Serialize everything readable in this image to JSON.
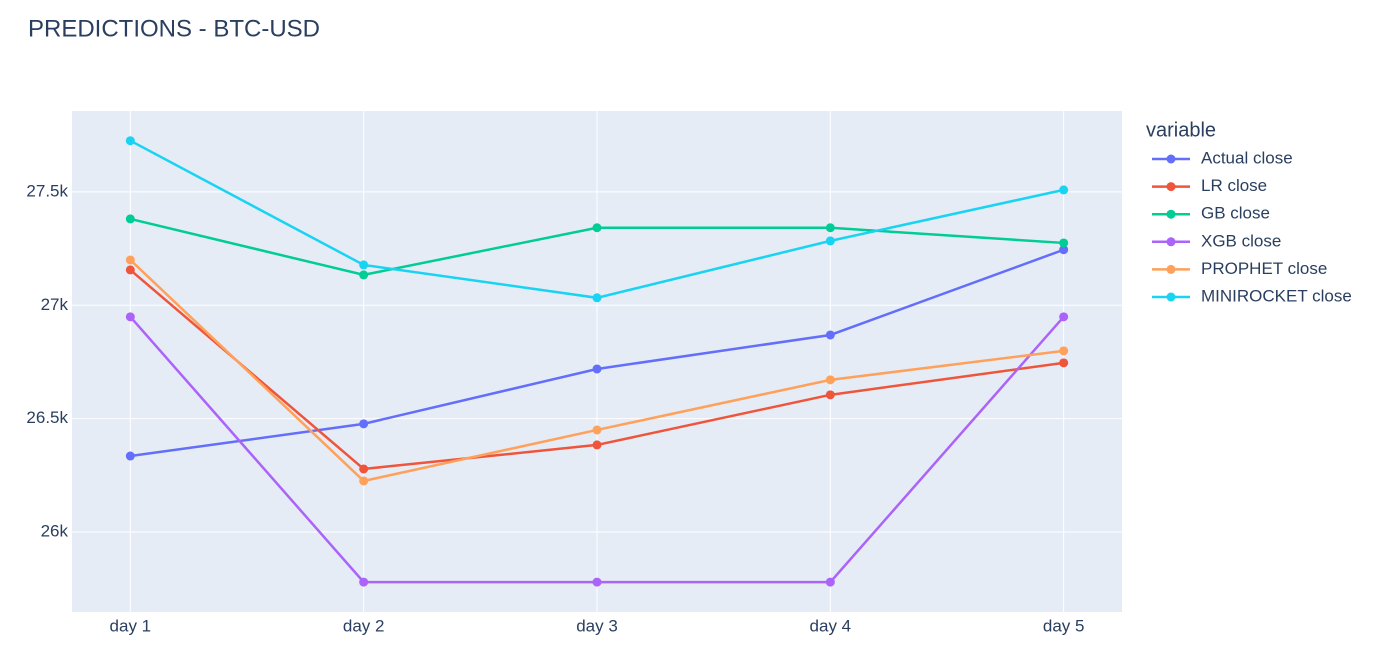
{
  "chart_data": {
    "type": "line",
    "title": "PREDICTIONS - BTC-USD",
    "legend_title": "variable",
    "legend_position": "right",
    "grid": true,
    "categories": [
      "day 1",
      "day 2",
      "day 3",
      "day 4",
      "day 5"
    ],
    "ylim": [
      25647,
      27857
    ],
    "yticks": [
      {
        "value": 26000,
        "label": "26k"
      },
      {
        "value": 26500,
        "label": "26.5k"
      },
      {
        "value": 27000,
        "label": "27k"
      },
      {
        "value": 27500,
        "label": "27.5k"
      }
    ],
    "series": [
      {
        "name": "Actual close",
        "color": "#636efa",
        "values": [
          26335,
          26477,
          26719,
          26869,
          27245
        ]
      },
      {
        "name": "LR close",
        "color": "#ef553b",
        "values": [
          27156,
          26278,
          26384,
          26605,
          26746
        ]
      },
      {
        "name": "GB close",
        "color": "#00cc96",
        "values": [
          27381,
          27134,
          27342,
          27342,
          27275
        ]
      },
      {
        "name": "XGB close",
        "color": "#ab63fa",
        "values": [
          26949,
          25779,
          25779,
          25779,
          26949
        ]
      },
      {
        "name": "PROPHET close",
        "color": "#ffa15a",
        "values": [
          27200,
          26225,
          26450,
          26671,
          26799
        ]
      },
      {
        "name": "MINIROCKET close",
        "color": "#19d3f3",
        "values": [
          27726,
          27178,
          27033,
          27284,
          27509
        ]
      }
    ]
  }
}
